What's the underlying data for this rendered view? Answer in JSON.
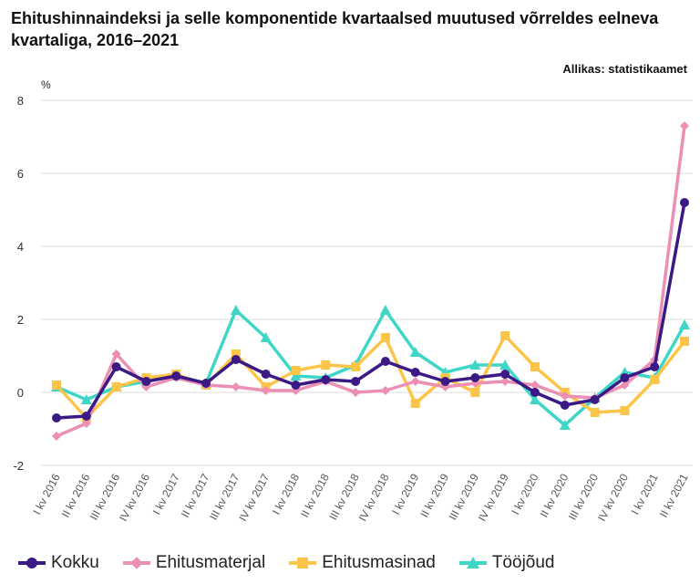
{
  "title": "Ehitushinnaindeksi ja selle komponentide kvartaalsed muutused võrreldes eelneva kvartaliga, 2016–2021",
  "source": "Allikas: statistikaamet",
  "chart_data": {
    "type": "line",
    "title": "Ehitushinnaindeksi ja selle komponentide kvartaalsed muutused võrreldes eelneva kvartaliga, 2016–2021",
    "ylabel": "%",
    "xlabel": "",
    "ylim": [
      -2,
      8
    ],
    "yticks": [
      -2,
      0,
      2,
      4,
      6,
      8
    ],
    "grid": true,
    "legend_position": "bottom",
    "categories": [
      "I kv 2016",
      "II kv 2016",
      "III kv 2016",
      "IV kv 2016",
      "I kv 2017",
      "II kv 2017",
      "III kv 2017",
      "IV kv 2017",
      "I kv 2018",
      "II kv 2018",
      "III kv 2018",
      "IV kv 2018",
      "I kv 2019",
      "II kv 2019",
      "III kv 2019",
      "IV kv 2019",
      "I kv 2020",
      "II kv 2020",
      "III kv 2020",
      "IV kv 2020",
      "I kv 2021",
      "II kv 2021"
    ],
    "series": [
      {
        "name": "Kokku",
        "color": "#3b1a86",
        "marker": "circle",
        "values": [
          -0.7,
          -0.65,
          0.7,
          0.3,
          0.45,
          0.25,
          0.9,
          0.5,
          0.2,
          0.35,
          0.3,
          0.85,
          0.55,
          0.3,
          0.4,
          0.5,
          0.0,
          -0.35,
          -0.2,
          0.4,
          0.7,
          5.2
        ]
      },
      {
        "name": "Ehitusmaterjal",
        "color": "#ec8fb5",
        "marker": "diamond",
        "values": [
          -1.2,
          -0.85,
          1.05,
          0.15,
          0.4,
          0.2,
          0.15,
          0.05,
          0.05,
          0.3,
          0.0,
          0.05,
          0.3,
          0.15,
          0.25,
          0.3,
          0.2,
          -0.1,
          -0.15,
          0.2,
          0.9,
          7.3
        ]
      },
      {
        "name": "Ehitusmasinad",
        "color": "#fcc54a",
        "marker": "square",
        "values": [
          0.2,
          -0.7,
          0.15,
          0.4,
          0.5,
          0.2,
          1.05,
          0.15,
          0.6,
          0.75,
          0.7,
          1.5,
          -0.3,
          0.4,
          0.0,
          1.55,
          0.7,
          0.0,
          -0.55,
          -0.5,
          0.35,
          1.4
        ]
      },
      {
        "name": "Tööjõud",
        "color": "#3ed6c6",
        "marker": "triangle",
        "values": [
          0.15,
          -0.2,
          0.15,
          0.3,
          0.45,
          0.25,
          2.25,
          1.5,
          0.45,
          0.4,
          0.75,
          2.25,
          1.1,
          0.55,
          0.75,
          0.75,
          -0.2,
          -0.9,
          -0.15,
          0.55,
          0.4,
          1.85
        ]
      }
    ]
  }
}
